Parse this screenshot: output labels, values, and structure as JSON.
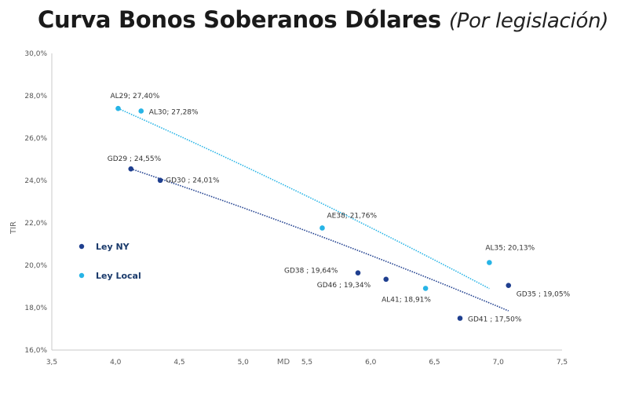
{
  "title": "Curva Bonos Soberanos Dólares",
  "subtitle": "(Por legislación)",
  "chart_data": {
    "type": "scatter",
    "xlabel": "MD",
    "ylabel": "TIR",
    "xlim": [
      3.5,
      7.5
    ],
    "ylim": [
      16,
      30
    ],
    "xticks": [
      "3,5",
      "4,0",
      "4,5",
      "5,0",
      "5,5",
      "6,0",
      "6,5",
      "7,0",
      "7,5"
    ],
    "yticks": [
      "16,0%",
      "18,0%",
      "20,0%",
      "22,0%",
      "24,0%",
      "26,0%",
      "28,0%",
      "30,0%"
    ],
    "colors": {
      "ny": "#1f3f8f",
      "local": "#27b4e6"
    },
    "series": [
      {
        "name": "Ley NY",
        "points": [
          {
            "x": 4.12,
            "y": 24.55,
            "label": "GD29 ; 24,55%"
          },
          {
            "x": 4.35,
            "y": 24.01,
            "label": "GD30 ; 24,01%"
          },
          {
            "x": 5.9,
            "y": 19.64,
            "label": "GD38 ; 19,64%"
          },
          {
            "x": 6.12,
            "y": 19.34,
            "label": "GD46 ; 19,34%"
          },
          {
            "x": 6.7,
            "y": 17.5,
            "label": "GD41 ; 17,50%"
          },
          {
            "x": 7.08,
            "y": 19.05,
            "label": "GD35 ; 19,05%"
          }
        ]
      },
      {
        "name": "Ley Local",
        "points": [
          {
            "x": 4.02,
            "y": 27.4,
            "label": "AL29; 27,40%"
          },
          {
            "x": 4.2,
            "y": 27.28,
            "label": "AL30; 27,28%"
          },
          {
            "x": 5.62,
            "y": 21.76,
            "label": "AE38; 21,76%"
          },
          {
            "x": 6.43,
            "y": 18.91,
            "label": "AL41; 18,91%"
          },
          {
            "x": 6.93,
            "y": 20.13,
            "label": "AL35; 20,13%"
          }
        ]
      }
    ],
    "trendlines": [
      {
        "series": "Ley NY",
        "x_range": [
          4.12,
          7.08
        ],
        "y_start": 24.55,
        "y_end": 17.85
      },
      {
        "series": "Ley Local",
        "x_range": [
          4.02,
          6.93
        ],
        "y_start": 27.4,
        "y_end": 18.9
      }
    ]
  }
}
